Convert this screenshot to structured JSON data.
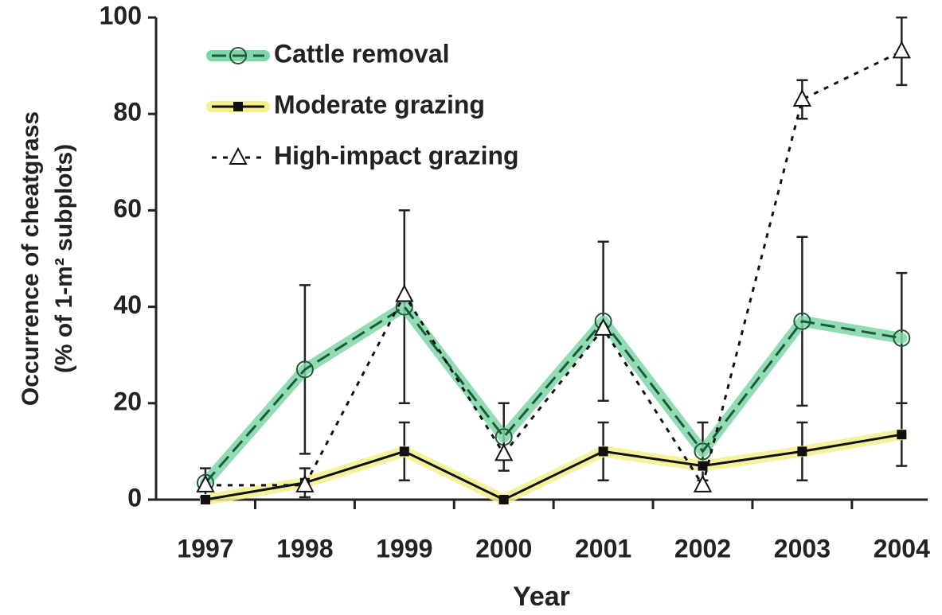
{
  "chart_data": {
    "type": "line",
    "ylabel": [
      "Occurrence of cheatgrass",
      "(% of 1-m² subplots)"
    ],
    "xlabel": "Year",
    "categories": [
      "1997",
      "1998",
      "1999",
      "2000",
      "2001",
      "2002",
      "2003",
      "2004"
    ],
    "series": [
      {
        "name": "Cattle removal",
        "color": "#1d5a3a",
        "highlight": "#7fd6a6",
        "dash": "dashed",
        "marker": "circle",
        "values": [
          3.5,
          27,
          40,
          13,
          37,
          10,
          37,
          33.5
        ],
        "errors": [
          3,
          17.5,
          20,
          7,
          16.5,
          6,
          17.5,
          13.5
        ]
      },
      {
        "name": "Moderate grazing",
        "color": "#111111",
        "highlight": "#f5f08a",
        "dash": "solid",
        "marker": "square",
        "values": [
          0,
          3.5,
          10,
          0,
          10,
          7,
          10,
          13.5
        ],
        "errors": [
          null,
          3,
          6,
          null,
          6,
          null,
          6,
          6.5
        ]
      },
      {
        "name": "High-impact grazing",
        "color": "#111111",
        "dash": "dotted",
        "marker": "triangle",
        "values": [
          3,
          3,
          42.5,
          9.5,
          35.5,
          3,
          83,
          93
        ],
        "errors": [
          null,
          null,
          null,
          null,
          null,
          null,
          4,
          7
        ]
      }
    ],
    "ylim": [
      0,
      100
    ],
    "yticks": [
      0,
      20,
      40,
      60,
      80,
      100
    ],
    "legend": "upper left"
  }
}
